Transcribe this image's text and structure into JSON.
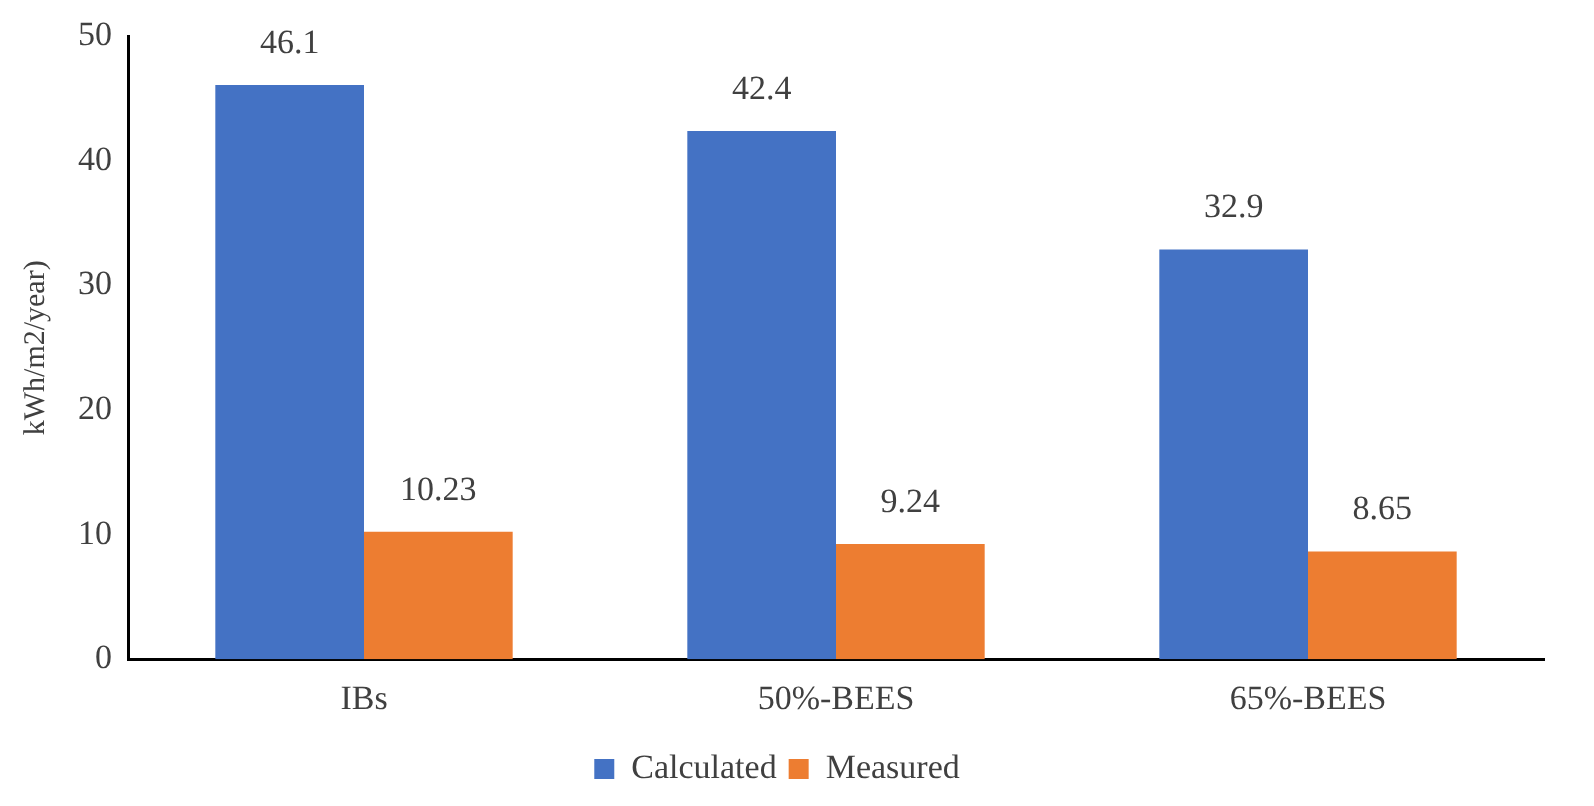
{
  "chart_data": {
    "type": "bar",
    "ylabel": "kWh/m2/year)",
    "categories": [
      "IBs",
      "50%-BEES",
      "65%-BEES"
    ],
    "series": [
      {
        "name": "Calculated",
        "color": "#4472c4",
        "values": [
          46.1,
          42.4,
          32.9
        ]
      },
      {
        "name": "Measured",
        "color": "#ed7d31",
        "values": [
          10.23,
          9.24,
          8.65
        ]
      }
    ],
    "ylim": [
      0,
      50
    ],
    "yticks": [
      0,
      10,
      20,
      30,
      40,
      50
    ],
    "grid": false,
    "legend": "bottom",
    "data_labels": true
  }
}
